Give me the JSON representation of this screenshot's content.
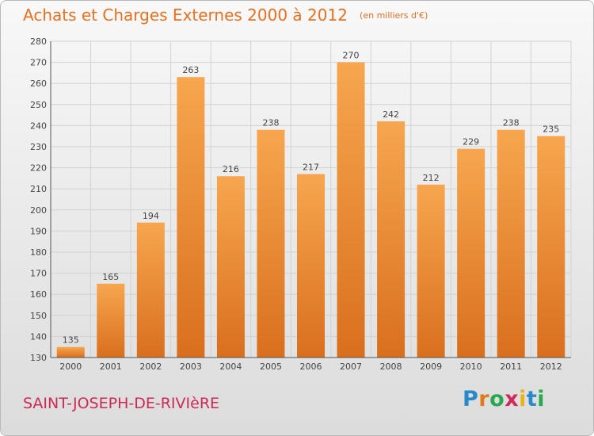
{
  "header": {
    "title": "Achats et Charges Externes 2000 à 2012",
    "subtitle": "(en milliers d'€)"
  },
  "footer": {
    "place": "SAINT-JOSEPH-DE-RIVIèRE",
    "logo_text": "Proxiti"
  },
  "colors": {
    "bar_top": "#f7a64f",
    "bar_bottom": "#d96f1e",
    "title": "#e8701f",
    "place": "#cf2a55"
  },
  "chart_data": {
    "type": "bar",
    "title": "Achats et Charges Externes 2000 à 2012",
    "subtitle": "(en milliers d'€)",
    "xlabel": "",
    "ylabel": "",
    "categories": [
      "2000",
      "2001",
      "2002",
      "2003",
      "2004",
      "2005",
      "2006",
      "2007",
      "2008",
      "2009",
      "2010",
      "2011",
      "2012"
    ],
    "values": [
      135,
      165,
      194,
      263,
      216,
      238,
      217,
      270,
      242,
      212,
      229,
      238,
      235
    ],
    "ylim": [
      130,
      280
    ],
    "yticks": [
      130,
      140,
      150,
      160,
      170,
      180,
      190,
      200,
      210,
      220,
      230,
      240,
      250,
      260,
      270,
      280
    ],
    "grid": true,
    "legend": "none"
  }
}
